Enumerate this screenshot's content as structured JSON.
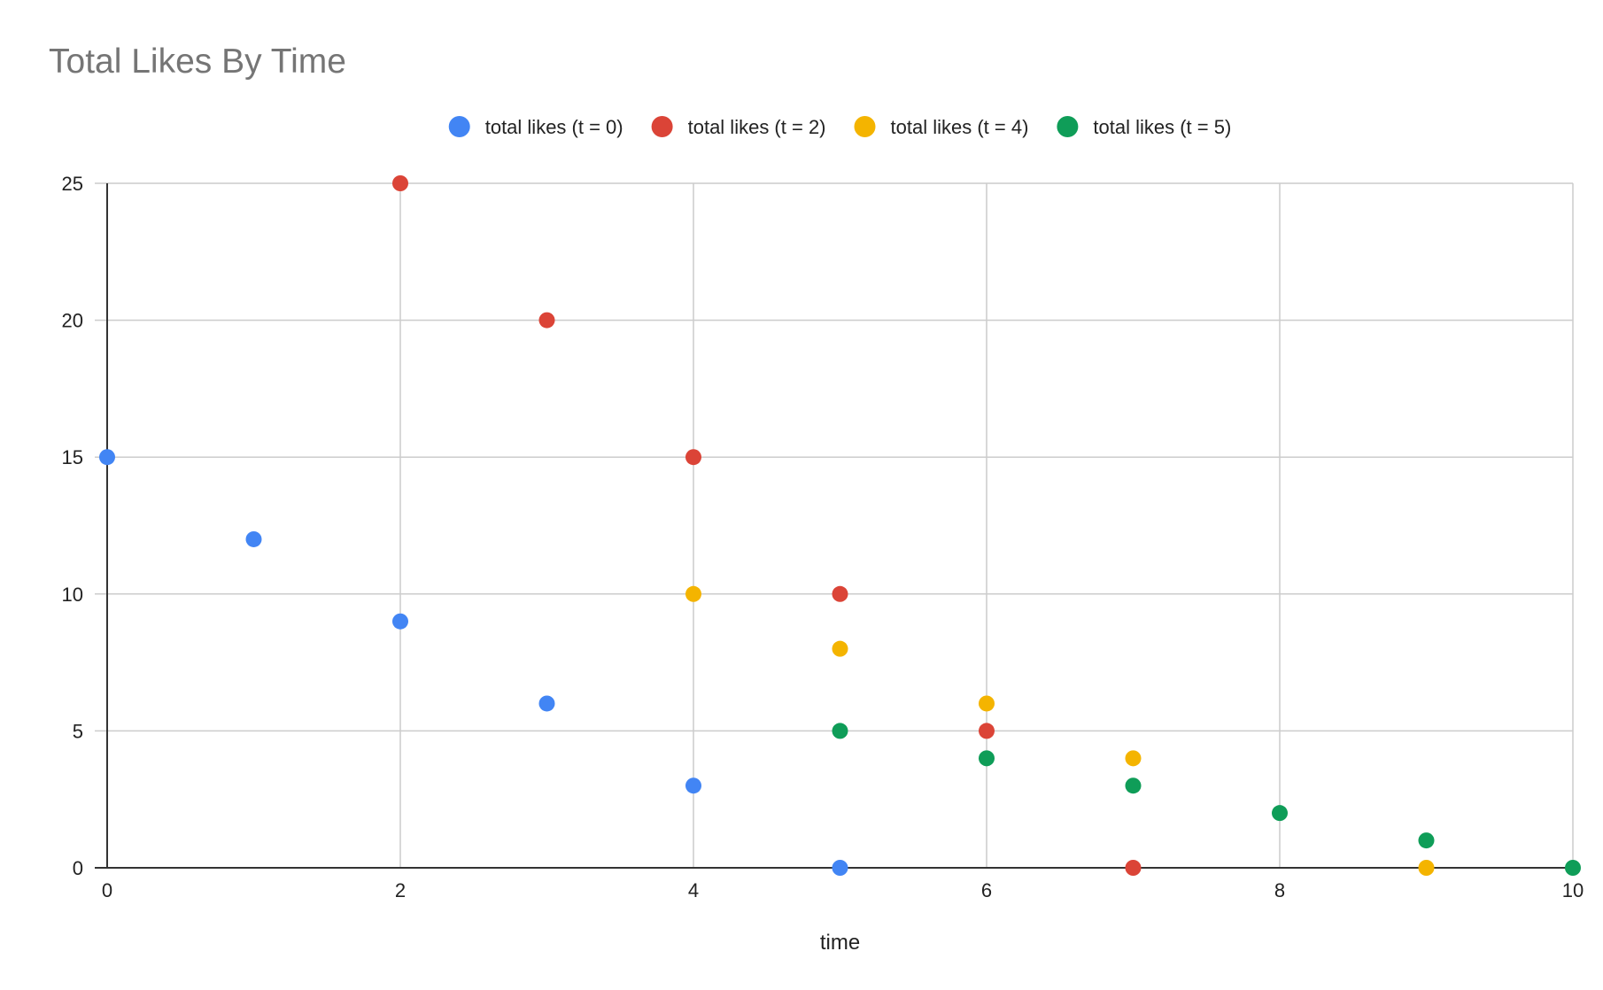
{
  "chart_data": {
    "type": "scatter",
    "title": "Total Likes By Time",
    "xlabel": "time",
    "ylabel": "",
    "xlim": [
      0,
      10
    ],
    "ylim": [
      0,
      25
    ],
    "xticks": [
      0,
      2,
      4,
      6,
      8,
      10
    ],
    "yticks": [
      0,
      5,
      10,
      15,
      20,
      25
    ],
    "grid": true,
    "legend_position": "top",
    "series": [
      {
        "name": "total likes (t = 0)",
        "color": "#4285F4",
        "x": [
          0,
          1,
          2,
          3,
          4,
          5
        ],
        "y": [
          15,
          12,
          9,
          6,
          3,
          0
        ]
      },
      {
        "name": "total likes (t = 2)",
        "color": "#DB4437",
        "x": [
          2,
          3,
          4,
          5,
          6,
          7
        ],
        "y": [
          25,
          20,
          15,
          10,
          5,
          0
        ]
      },
      {
        "name": "total likes (t = 4)",
        "color": "#F4B400",
        "x": [
          4,
          5,
          6,
          7,
          9
        ],
        "y": [
          10,
          8,
          6,
          4,
          0
        ]
      },
      {
        "name": "total likes (t = 5)",
        "color": "#0F9D58",
        "x": [
          5,
          6,
          7,
          8,
          9,
          10
        ],
        "y": [
          5,
          4,
          3,
          2,
          1,
          0
        ]
      }
    ]
  }
}
